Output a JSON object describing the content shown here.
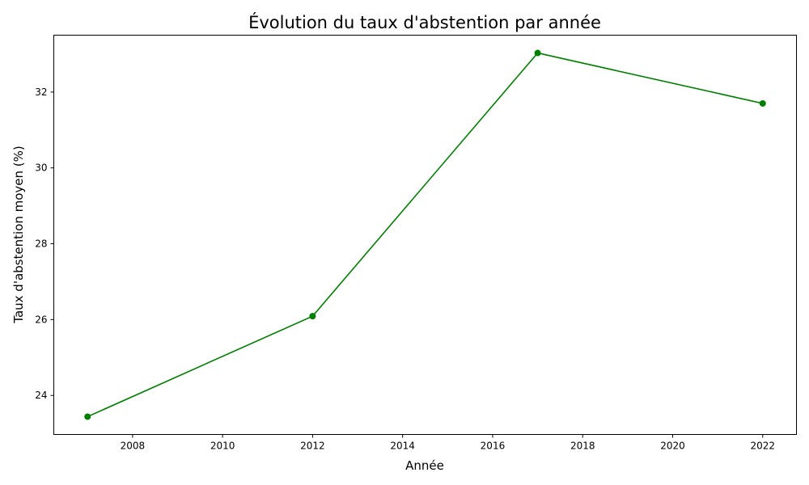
{
  "chart_data": {
    "type": "line",
    "title": "Évolution du taux d'abstention par année",
    "xlabel": "Année",
    "ylabel": "Taux d'abstention moyen (%)",
    "xlim": [
      2006.25,
      2022.75
    ],
    "ylim": [
      22.97,
      33.5
    ],
    "xticks": [
      2008,
      2010,
      2012,
      2014,
      2016,
      2018,
      2020,
      2022
    ],
    "yticks": [
      24,
      26,
      28,
      30,
      32
    ],
    "grid": false,
    "series": [
      {
        "color": "#008000",
        "marker": "circle",
        "points": [
          {
            "x": 2007,
            "y": 23.44
          },
          {
            "x": 2012,
            "y": 26.09
          },
          {
            "x": 2017,
            "y": 33.03
          },
          {
            "x": 2022,
            "y": 31.7
          }
        ]
      }
    ]
  }
}
